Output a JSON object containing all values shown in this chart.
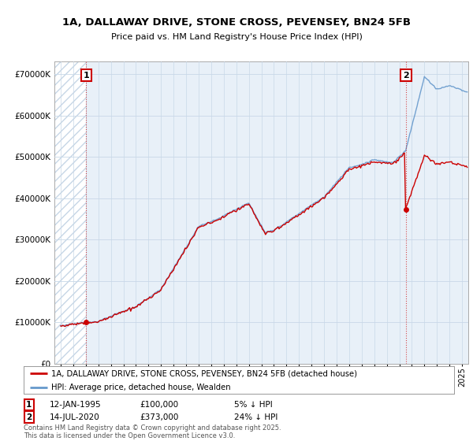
{
  "title1": "1A, DALLAWAY DRIVE, STONE CROSS, PEVENSEY, BN24 5FB",
  "title2": "Price paid vs. HM Land Registry's House Price Index (HPI)",
  "background_color": "#ffffff",
  "plot_bg_color": "#e8f0f8",
  "hatch_color": "#b8cce0",
  "grid_color": "#c8d8e8",
  "annotation1": {
    "label": "1",
    "date": "12-JAN-1995",
    "price": 100000,
    "note": "5% ↓ HPI"
  },
  "annotation2": {
    "label": "2",
    "date": "14-JUL-2020",
    "price": 373000,
    "note": "24% ↓ HPI"
  },
  "legend1": "1A, DALLAWAY DRIVE, STONE CROSS, PEVENSEY, BN24 5FB (detached house)",
  "legend2": "HPI: Average price, detached house, Wealden",
  "footer": "Contains HM Land Registry data © Crown copyright and database right 2025.\nThis data is licensed under the Open Government Licence v3.0.",
  "line1_color": "#cc0000",
  "line2_color": "#6699cc",
  "yticks": [
    0,
    100000,
    200000,
    300000,
    400000,
    500000,
    600000,
    700000
  ],
  "ylim": [
    0,
    730000
  ],
  "sale1_year": 1995.04,
  "sale1_price": 100000,
  "sale2_year": 2020.54,
  "sale2_price": 373000,
  "hatch_start": 1992.5,
  "hatch_end": 1995.04,
  "xmin": 1992.5,
  "xmax": 2025.5
}
